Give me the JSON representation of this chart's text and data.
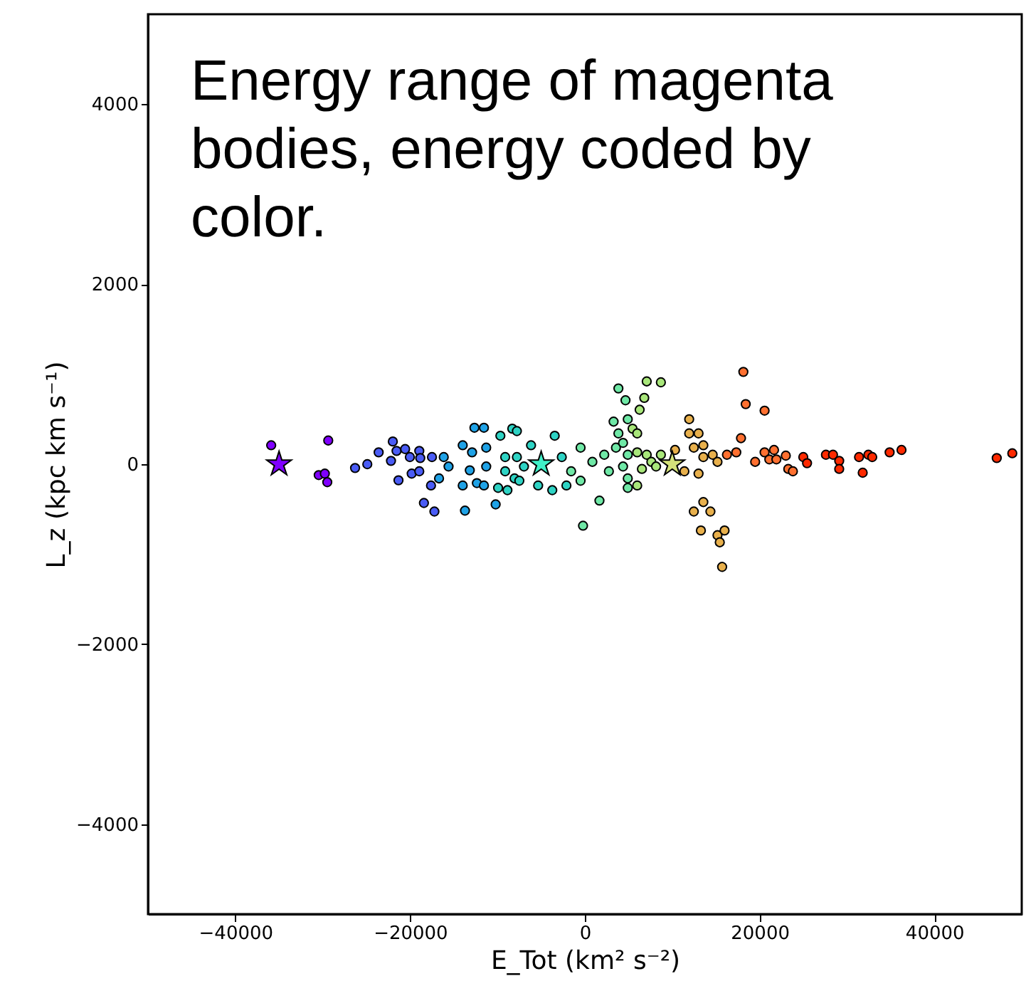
{
  "chart_data": {
    "type": "scatter",
    "xlabel": "E_Tot (km² s⁻²)",
    "ylabel": "L_z (kpc km s⁻¹)",
    "xlim": [
      -50000,
      50000
    ],
    "xticks": [
      -40000,
      -20000,
      0,
      20000,
      40000
    ],
    "ylim": [
      -5000,
      5000
    ],
    "yticks": [
      -4000,
      -2000,
      0,
      2000,
      4000
    ],
    "grid": false,
    "marker": "circle",
    "annotations": [
      "Energy range of magenta bodies, energy coded by color."
    ],
    "series": [
      {
        "color": "#8000ff",
        "x": [
          -35900,
          -29370,
          -30460,
          -29760,
          -29480
        ],
        "values": [
          210,
          263,
          -121,
          -105,
          -200
        ]
      },
      {
        "color": "#4a5cf5",
        "x": [
          -26300,
          -24900,
          -23600,
          -21980,
          -22190,
          -21550,
          -20570,
          -20030,
          -18950,
          -18840,
          -21330,
          -19820,
          -18950,
          -18420,
          -17220,
          -17500,
          -17610
        ],
        "values": [
          -42,
          0,
          131,
          252,
          37,
          147,
          168,
          79,
          147,
          68,
          -179,
          -105,
          -79,
          -431,
          -526,
          79,
          -237
        ]
      },
      {
        "color": "#1fa2e6",
        "x": [
          -16690,
          -16150,
          -15600,
          -13720,
          -12640,
          -11550,
          -10210,
          -13980,
          -12910,
          -11290,
          -13170,
          -13980,
          -12360,
          -11290,
          -11550
        ],
        "values": [
          -158,
          79,
          -26,
          -516,
          405,
          405,
          -447,
          210,
          131,
          184,
          -68,
          -237,
          -210,
          -26,
          -237
        ]
      },
      {
        "color": "#2ed3c4",
        "x": [
          -9670,
          -8310,
          -9930,
          -8860,
          -9120,
          -9120,
          -7780,
          -8050,
          -7780,
          -3450,
          -6160,
          -6970,
          -7500,
          -5350,
          -3730,
          -2110,
          -2640
        ],
        "values": [
          316,
          395,
          -263,
          -289,
          -79,
          79,
          79,
          -158,
          368,
          316,
          210,
          -26,
          -184,
          -237,
          -289,
          -237,
          79
        ]
      },
      {
        "color": "#6fe8a6",
        "x": [
          -490,
          -1570,
          -490,
          -210,
          1670,
          860,
          2220,
          2750,
          3840,
          4650,
          3290,
          4910,
          3840,
          3560,
          4370,
          4910,
          4370,
          4910,
          4910
        ],
        "values": [
          184,
          -79,
          -184,
          -684,
          -405,
          26,
          105,
          -79,
          842,
          710,
          473,
          500,
          342,
          184,
          237,
          105,
          -26,
          -158,
          -263
        ]
      },
      {
        "color": "#a8e67a",
        "x": [
          6270,
          6800,
          7080,
          8700,
          5460,
          5990,
          5990,
          7080,
          7610,
          5990,
          6530,
          8150,
          8700
        ],
        "values": [
          605,
          737,
          920,
          910,
          395,
          342,
          131,
          105,
          26,
          -237,
          -53,
          -26,
          105
        ]
      },
      {
        "color": "#e8b04c",
        "x": [
          10320,
          11940,
          11940,
          13010,
          12470,
          13560,
          11390,
          13010,
          13560,
          14630,
          15180,
          13560,
          12470,
          14370,
          13280,
          15180,
          15990,
          15440,
          15710
        ],
        "values": [
          158,
          500,
          342,
          342,
          184,
          210,
          -79,
          -105,
          79,
          105,
          26,
          -421,
          -526,
          -526,
          -737,
          -789,
          -737,
          -868,
          -1141
        ]
      },
      {
        "color": "#ff7030",
        "x": [
          16260,
          17330,
          17870,
          18140,
          18410,
          20570,
          19490,
          20570,
          21650,
          21110,
          21920,
          23000,
          23280,
          23810
        ],
        "values": [
          105,
          131,
          289,
          1026,
          668,
          595,
          26,
          131,
          158,
          53,
          53,
          95,
          -53,
          -79
        ]
      },
      {
        "color": "#ff2a00",
        "x": [
          25000,
          25430,
          27590,
          28400,
          29110,
          29110,
          31380,
          32450,
          32890,
          31800,
          34880,
          36240,
          47140,
          48920
        ],
        "values": [
          79,
          11,
          105,
          105,
          37,
          -53,
          79,
          105,
          79,
          -95,
          131,
          158,
          68,
          121
        ]
      },
      {
        "marker": "star",
        "colors": [
          "#8000ff",
          "#40f0c8",
          "#d4e27a"
        ],
        "x": [
          -35000,
          -5000,
          10000
        ],
        "values": [
          0,
          0,
          0
        ]
      }
    ]
  }
}
